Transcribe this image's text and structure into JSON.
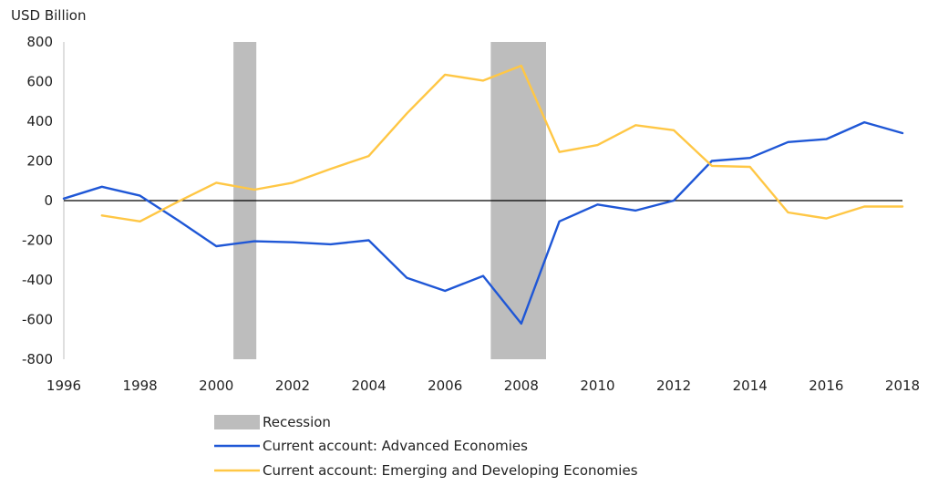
{
  "chart_data": {
    "type": "line",
    "unit_label": "USD Billion",
    "xlim": [
      1996,
      2018
    ],
    "ylim": [
      -800,
      800
    ],
    "x_ticks": [
      1996,
      1998,
      2000,
      2002,
      2004,
      2006,
      2008,
      2010,
      2012,
      2014,
      2016,
      2018
    ],
    "y_ticks": [
      800,
      600,
      400,
      200,
      0,
      -200,
      -400,
      -600,
      -800
    ],
    "grid": false,
    "zero_line": true,
    "legend_position": "bottom",
    "recessions": [
      {
        "start": 2000.45,
        "end": 2001.05
      },
      {
        "start": 2007.2,
        "end": 2008.65
      }
    ],
    "series": [
      {
        "name": "Current account: Advanced Economies",
        "color": "#1f57d6",
        "x": [
          1996,
          1997,
          1998,
          1999,
          2000,
          2001,
          2002,
          2003,
          2004,
          2005,
          2006,
          2007,
          2008,
          2009,
          2010,
          2011,
          2012,
          2013,
          2014,
          2015,
          2016,
          2017,
          2018
        ],
        "values": [
          10,
          70,
          25,
          -100,
          -230,
          -205,
          -210,
          -220,
          -200,
          -390,
          -455,
          -380,
          -620,
          -105,
          -20,
          -50,
          0,
          200,
          215,
          295,
          310,
          395,
          340
        ]
      },
      {
        "name": "Current account: Emerging and Developing Economies",
        "color": "#ffc745",
        "x": [
          1997,
          1998,
          1999,
          2000,
          2001,
          2002,
          2003,
          2004,
          2005,
          2006,
          2007,
          2008,
          2009,
          2010,
          2011,
          2012,
          2013,
          2014,
          2015,
          2016,
          2017,
          2018
        ],
        "values": [
          -75,
          -105,
          -5,
          90,
          55,
          90,
          160,
          225,
          440,
          635,
          605,
          680,
          245,
          280,
          380,
          355,
          175,
          170,
          -60,
          -90,
          -30,
          -30
        ]
      }
    ],
    "legend": [
      {
        "label": "Recession",
        "kind": "box",
        "color": "#bdbdbd"
      },
      {
        "label": "Current account: Advanced Economies",
        "kind": "line",
        "color": "#1f57d6"
      },
      {
        "label": "Current account: Emerging and Developing Economies",
        "kind": "line",
        "color": "#ffc745"
      }
    ]
  }
}
